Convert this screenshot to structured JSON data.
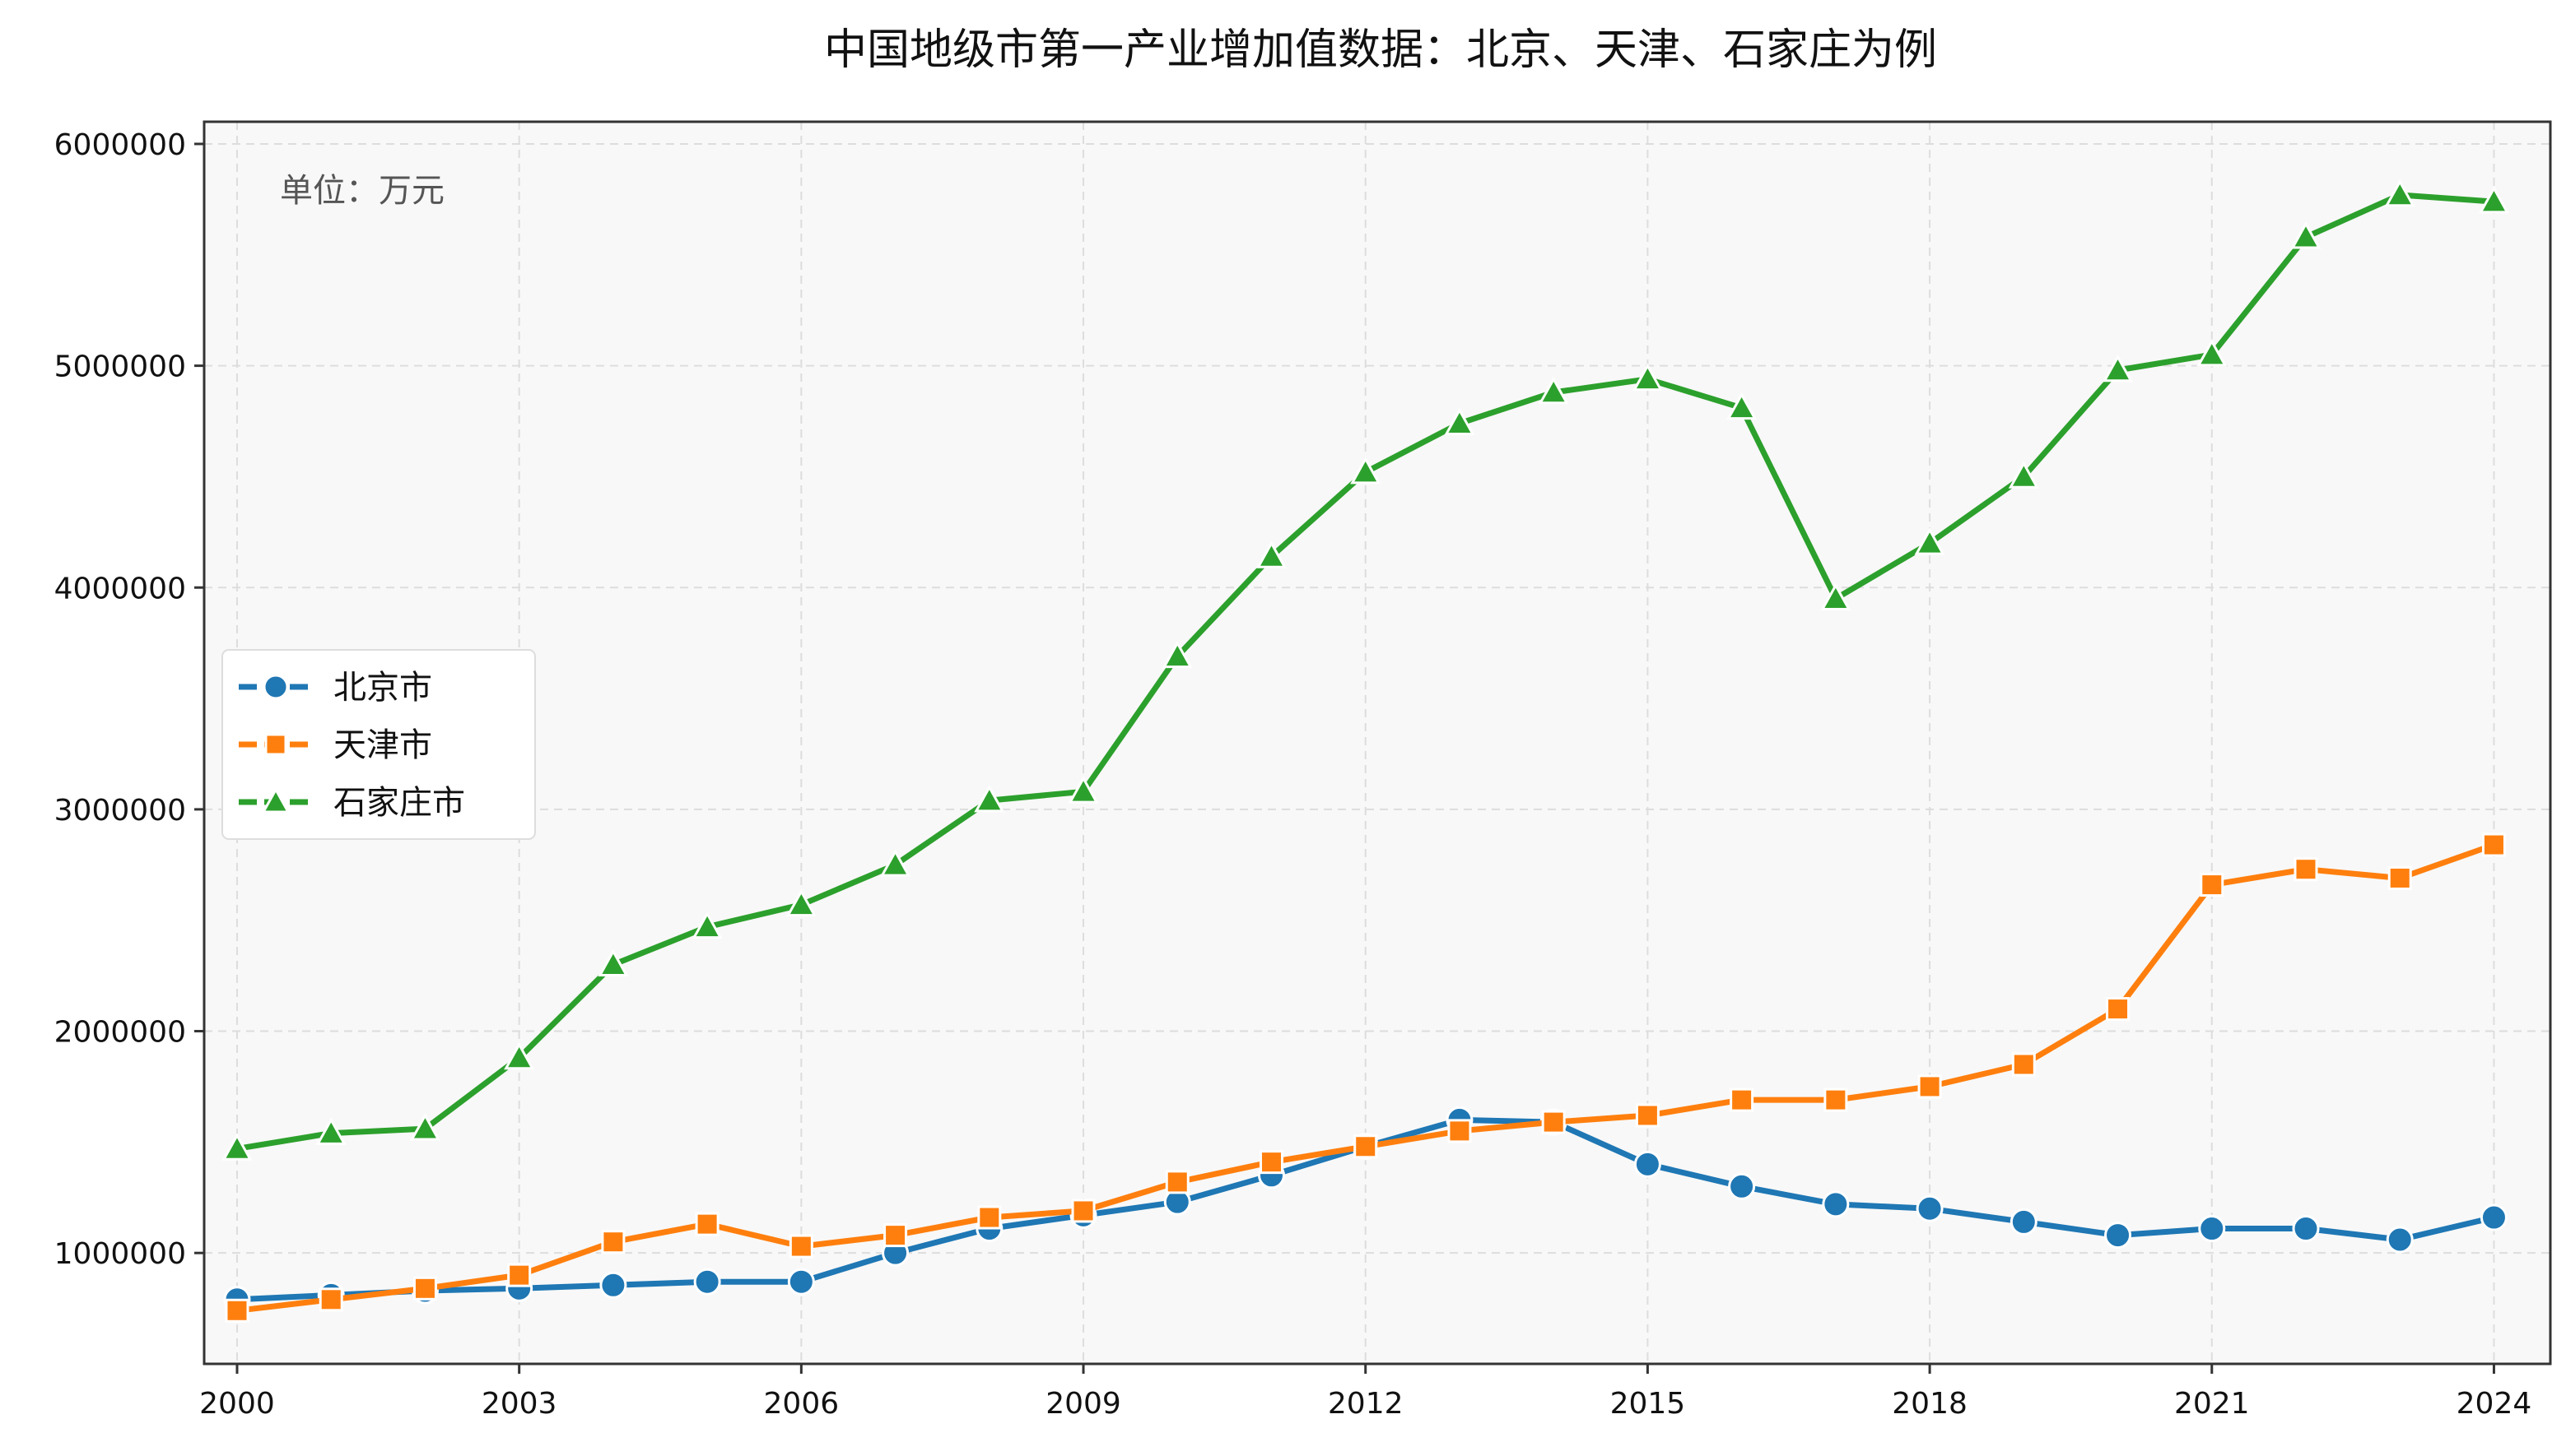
{
  "chart_data": {
    "type": "line",
    "title": "中国地级市第一产业增加值数据：北京、天津、石家庄为例",
    "unit_note": "单位：万元",
    "xlabel": "",
    "ylabel": "",
    "xlim": [
      1999.65,
      2024.6
    ],
    "ylim": [
      500000,
      6100000
    ],
    "x_ticks": [
      2000,
      2003,
      2006,
      2009,
      2012,
      2015,
      2018,
      2021,
      2024
    ],
    "x_tick_labels": [
      "2000",
      "2003",
      "2006",
      "2009",
      "2012",
      "2015",
      "2018",
      "2021",
      "2024"
    ],
    "y_ticks": [
      1000000,
      2000000,
      3000000,
      4000000,
      5000000,
      6000000
    ],
    "y_tick_labels": [
      "1000000",
      "2000000",
      "3000000",
      "4000000",
      "5000000",
      "6000000"
    ],
    "grid": true,
    "legend_position": "center-left",
    "x": [
      2000,
      2001,
      2002,
      2003,
      2004,
      2005,
      2006,
      2007,
      2008,
      2009,
      2010,
      2011,
      2012,
      2013,
      2014,
      2015,
      2016,
      2017,
      2018,
      2019,
      2020,
      2021,
      2022,
      2023,
      2024
    ],
    "series": [
      {
        "name": "北京市",
        "color": "#1f77b4",
        "marker": "circle",
        "values": [
          790000,
          810000,
          830000,
          840000,
          855000,
          870000,
          870000,
          1000000,
          1110000,
          1170000,
          1230000,
          1350000,
          1480000,
          1600000,
          1590000,
          1400000,
          1300000,
          1220000,
          1200000,
          1140000,
          1080000,
          1110000,
          1110000,
          1060000,
          1160000
        ]
      },
      {
        "name": "天津市",
        "color": "#ff7f0e",
        "marker": "square",
        "values": [
          740000,
          790000,
          840000,
          900000,
          1050000,
          1130000,
          1030000,
          1080000,
          1160000,
          1190000,
          1320000,
          1410000,
          1480000,
          1550000,
          1590000,
          1620000,
          1690000,
          1690000,
          1750000,
          1850000,
          2100000,
          2660000,
          2730000,
          2690000,
          2840000
        ]
      },
      {
        "name": "石家庄市",
        "color": "#2ca02c",
        "marker": "triangle",
        "values": [
          1470000,
          1540000,
          1560000,
          1880000,
          2300000,
          2470000,
          2570000,
          2750000,
          3040000,
          3080000,
          3690000,
          4140000,
          4520000,
          4740000,
          4880000,
          4940000,
          4810000,
          3950000,
          4200000,
          4500000,
          4980000,
          5050000,
          5580000,
          5770000,
          5740000
        ]
      }
    ]
  }
}
